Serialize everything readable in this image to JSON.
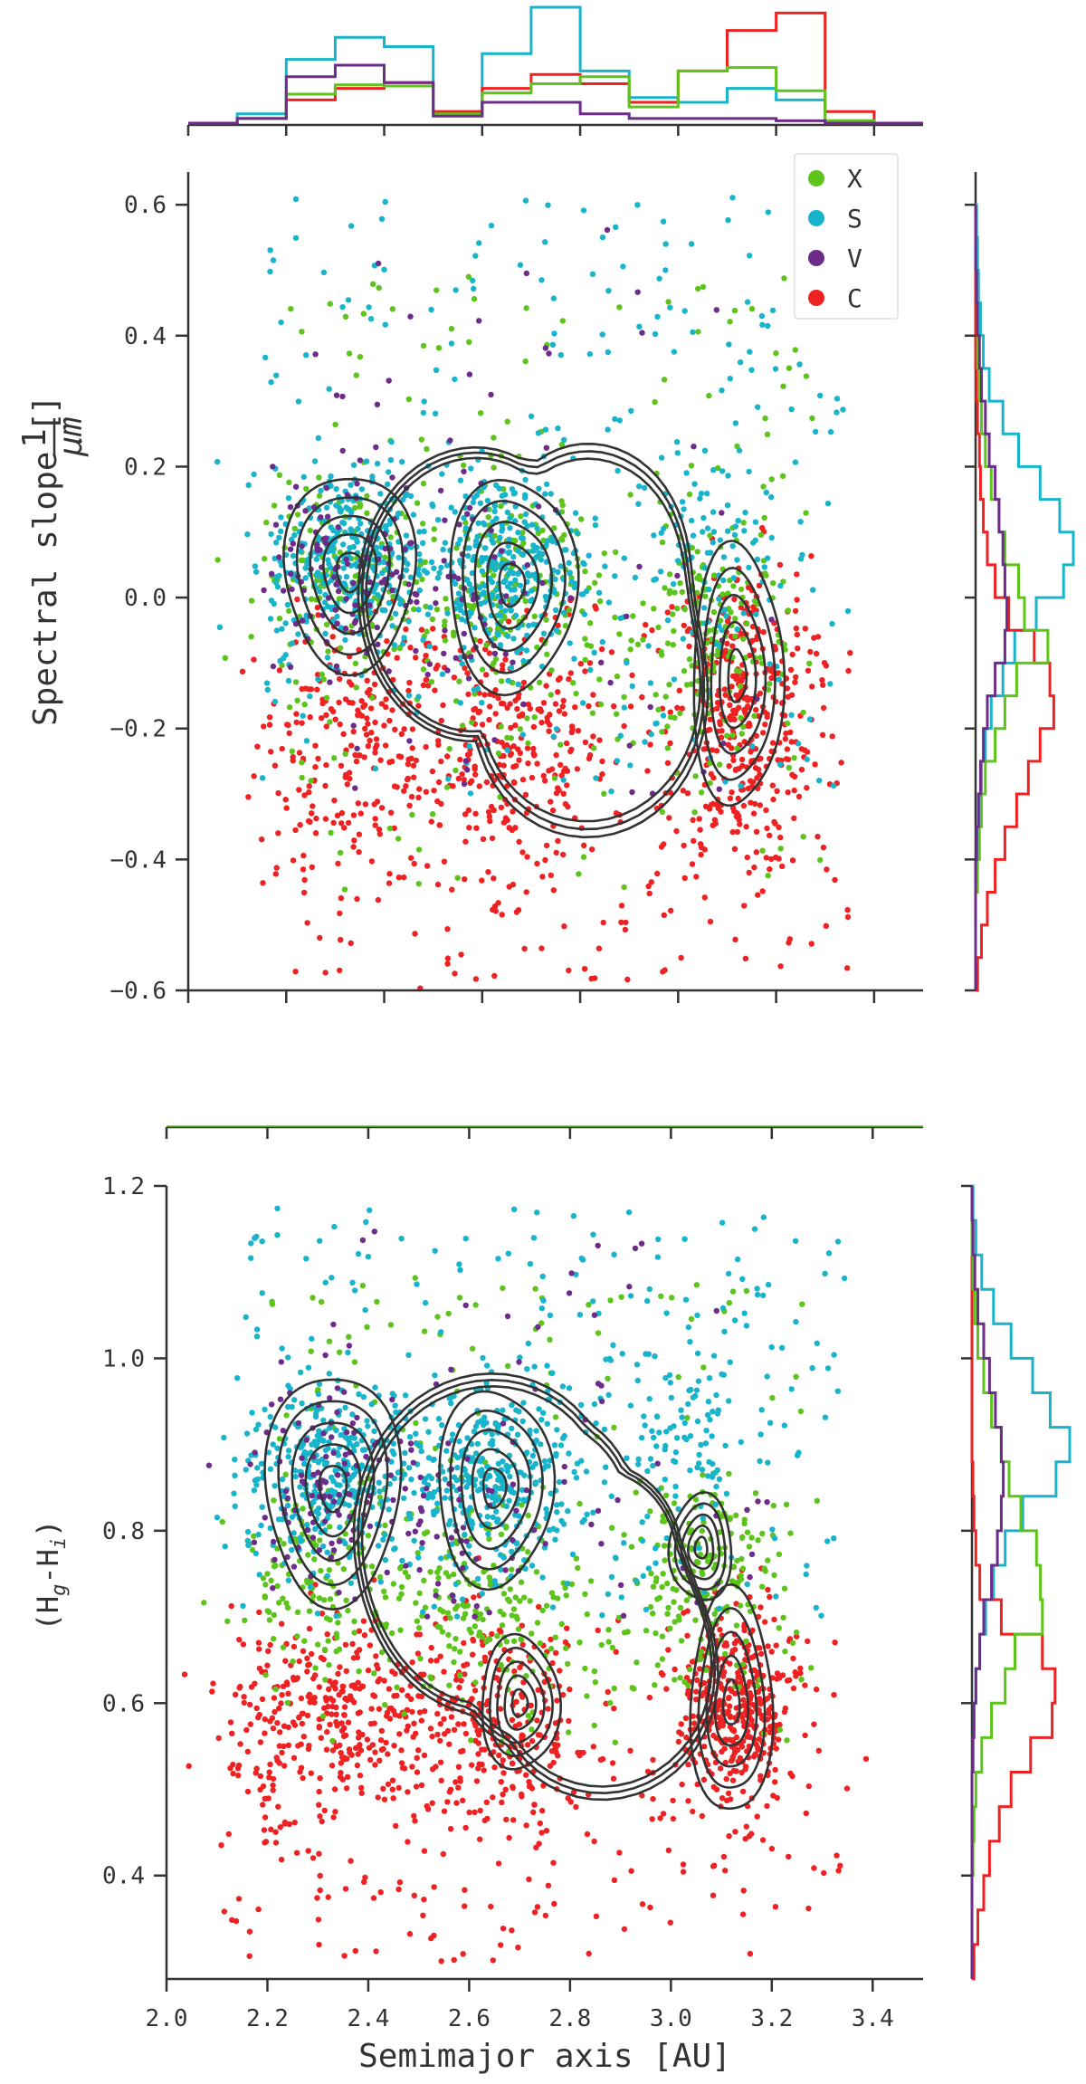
{
  "chart_data": [
    {
      "type": "scatter",
      "panel": "top",
      "title": "",
      "xlabel": "",
      "ylabel_text": "Spectral slope [",
      "ylabel_frac_num": "1",
      "ylabel_frac_den": "μm",
      "ylabel_close": "]",
      "xlim": [
        2.0,
        3.5
      ],
      "ylim": [
        -0.6,
        0.65
      ],
      "yticks": [
        -0.6,
        -0.4,
        -0.2,
        0.0,
        0.2,
        0.4,
        0.6
      ],
      "ytick_labels": [
        "−0.6",
        "−0.4",
        "−0.2",
        "0.0",
        "0.2",
        "0.4",
        "0.6"
      ],
      "xticks": [
        2.0,
        2.2,
        2.4,
        2.6,
        2.8,
        3.0,
        3.2,
        3.4
      ],
      "legend_position": "top-right",
      "series": [
        {
          "name": "X",
          "color": "#5cc41a",
          "clusters": [
            [
              2.33,
              0.03,
              0.09,
              0.07,
              160
            ],
            [
              2.66,
              0.0,
              0.09,
              0.09,
              200
            ],
            [
              3.06,
              -0.06,
              0.07,
              0.1,
              150
            ]
          ],
          "spread": [
            2.2,
            3.3,
            -0.45,
            0.5,
            160
          ]
        },
        {
          "name": "S",
          "color": "#18b4cc",
          "clusters": [
            [
              2.33,
              0.06,
              0.08,
              0.07,
              330
            ],
            [
              2.64,
              0.05,
              0.08,
              0.07,
              300
            ],
            [
              3.05,
              0.05,
              0.08,
              0.09,
              90
            ]
          ],
          "spread": [
            2.15,
            3.35,
            -0.3,
            0.62,
            240
          ]
        },
        {
          "name": "V",
          "color": "#6e2c8a",
          "clusters": [
            [
              2.33,
              0.05,
              0.08,
              0.08,
              110
            ],
            [
              2.6,
              0.02,
              0.07,
              0.08,
              40
            ]
          ],
          "spread": [
            2.15,
            3.2,
            -0.3,
            0.6,
            60
          ]
        },
        {
          "name": "C",
          "color": "#ee2222",
          "clusters": [
            [
              2.34,
              -0.22,
              0.1,
              0.1,
              200
            ],
            [
              2.66,
              -0.24,
              0.1,
              0.09,
              240
            ],
            [
              3.13,
              -0.18,
              0.07,
              0.12,
              360
            ]
          ],
          "spread": [
            2.15,
            3.35,
            -0.6,
            0.0,
            230
          ]
        }
      ],
      "contour_levels": 8,
      "kde_centers": [
        [
          2.33,
          0.04,
          0.08,
          0.09,
          1.0
        ],
        [
          2.66,
          0.02,
          0.08,
          0.1,
          0.95
        ],
        [
          3.12,
          -0.12,
          0.06,
          0.13,
          0.85
        ]
      ]
    },
    {
      "type": "scatter",
      "panel": "bottom",
      "title": "",
      "xlabel": "Semimajor axis [AU]",
      "ylabel_parts": [
        "(H",
        "g",
        "-H",
        "i",
        ")"
      ],
      "xlim": [
        2.0,
        3.5
      ],
      "ylim": [
        0.28,
        1.2
      ],
      "xticks": [
        2.0,
        2.2,
        2.4,
        2.6,
        2.8,
        3.0,
        3.2,
        3.4
      ],
      "xtick_labels": [
        "2.0",
        "2.2",
        "2.4",
        "2.6",
        "2.8",
        "3.0",
        "3.2",
        "3.4"
      ],
      "yticks": [
        0.4,
        0.6,
        0.8,
        1.0,
        1.2
      ],
      "ytick_labels": [
        "0.4",
        "0.6",
        "0.8",
        "1.0",
        "1.2"
      ],
      "series": [
        {
          "name": "X",
          "color": "#5cc41a",
          "clusters": [
            [
              2.33,
              0.75,
              0.1,
              0.05,
              140
            ],
            [
              2.66,
              0.72,
              0.09,
              0.06,
              170
            ],
            [
              3.06,
              0.75,
              0.07,
              0.06,
              180
            ]
          ],
          "spread": [
            2.2,
            3.3,
            0.55,
            1.1,
            160
          ]
        },
        {
          "name": "S",
          "color": "#18b4cc",
          "clusters": [
            [
              2.33,
              0.87,
              0.09,
              0.05,
              330
            ],
            [
              2.65,
              0.86,
              0.08,
              0.05,
              300
            ],
            [
              3.03,
              0.9,
              0.07,
              0.06,
              90
            ]
          ],
          "spread": [
            2.15,
            3.35,
            0.7,
            1.18,
            240
          ]
        },
        {
          "name": "V",
          "color": "#6e2c8a",
          "clusters": [
            [
              2.33,
              0.86,
              0.08,
              0.06,
              100
            ],
            [
              2.6,
              0.82,
              0.07,
              0.06,
              40
            ]
          ],
          "spread": [
            2.15,
            3.2,
            0.7,
            1.15,
            60
          ]
        },
        {
          "name": "C",
          "color": "#ee2222",
          "clusters": [
            [
              2.33,
              0.58,
              0.1,
              0.06,
              300
            ],
            [
              2.66,
              0.57,
              0.1,
              0.06,
              260
            ],
            [
              3.13,
              0.59,
              0.06,
              0.06,
              380
            ]
          ],
          "spread": [
            2.1,
            3.35,
            0.3,
            0.68,
            230
          ]
        }
      ],
      "contour_levels": 8,
      "kde_centers": [
        [
          2.33,
          0.85,
          0.08,
          0.08,
          1.0
        ],
        [
          2.65,
          0.85,
          0.07,
          0.07,
          0.95
        ],
        [
          2.7,
          0.6,
          0.06,
          0.06,
          0.6
        ],
        [
          3.12,
          0.6,
          0.05,
          0.08,
          0.95
        ],
        [
          3.06,
          0.78,
          0.05,
          0.05,
          0.55
        ]
      ]
    },
    {
      "type": "histogram",
      "panel": "top-marginal-x",
      "orientation": "vertical",
      "bin_edges": [
        2.0,
        2.1,
        2.2,
        2.3,
        2.4,
        2.5,
        2.6,
        2.7,
        2.8,
        2.9,
        3.0,
        3.1,
        3.2,
        3.3,
        3.4,
        3.5
      ],
      "series": [
        {
          "name": "S",
          "color": "#18b4cc",
          "values": [
            0,
            0.08,
            0.55,
            0.74,
            0.66,
            0.1,
            0.6,
            1.0,
            0.45,
            0.22,
            0.18,
            0.3,
            0.2,
            0.02,
            0.0
          ]
        },
        {
          "name": "C",
          "color": "#ee2222",
          "values": [
            0,
            0.04,
            0.2,
            0.3,
            0.35,
            0.1,
            0.3,
            0.42,
            0.34,
            0.18,
            0.45,
            0.8,
            0.95,
            0.1,
            0.0
          ]
        },
        {
          "name": "X",
          "color": "#5cc41a",
          "values": [
            0,
            0.04,
            0.25,
            0.33,
            0.32,
            0.08,
            0.26,
            0.34,
            0.4,
            0.14,
            0.45,
            0.48,
            0.28,
            0.02,
            0.0
          ]
        },
        {
          "name": "V",
          "color": "#6e2c8a",
          "values": [
            0,
            0.04,
            0.4,
            0.5,
            0.35,
            0.06,
            0.18,
            0.18,
            0.08,
            0.04,
            0.04,
            0.04,
            0.02,
            0.0,
            0.0
          ]
        }
      ]
    },
    {
      "type": "histogram",
      "panel": "top-marginal-y",
      "orientation": "horizontal",
      "bin_edges": [
        -0.6,
        -0.55,
        -0.5,
        -0.45,
        -0.4,
        -0.35,
        -0.3,
        -0.25,
        -0.2,
        -0.15,
        -0.1,
        -0.05,
        0.0,
        0.05,
        0.1,
        0.15,
        0.2,
        0.25,
        0.3,
        0.35,
        0.4,
        0.45,
        0.5,
        0.55,
        0.6
      ],
      "series": [
        {
          "name": "S",
          "color": "#18b4cc",
          "values": [
            0,
            0,
            0,
            0,
            0.02,
            0.04,
            0.06,
            0.1,
            0.16,
            0.28,
            0.4,
            0.62,
            0.9,
            1.0,
            0.86,
            0.66,
            0.44,
            0.28,
            0.14,
            0.08,
            0.05,
            0.03,
            0.02,
            0.01
          ]
        },
        {
          "name": "C",
          "color": "#ee2222",
          "values": [
            0.02,
            0.06,
            0.12,
            0.2,
            0.3,
            0.42,
            0.54,
            0.66,
            0.8,
            0.76,
            0.6,
            0.34,
            0.2,
            0.12,
            0.08,
            0.05,
            0.04,
            0.02,
            0.01,
            0.0,
            0.0,
            0.0,
            0.0,
            0.0
          ]
        },
        {
          "name": "X",
          "color": "#5cc41a",
          "values": [
            0,
            0,
            0,
            0.02,
            0.04,
            0.06,
            0.1,
            0.2,
            0.3,
            0.42,
            0.74,
            0.5,
            0.44,
            0.3,
            0.24,
            0.16,
            0.1,
            0.06,
            0.04,
            0.02,
            0.02,
            0.01,
            0.0,
            0.0
          ]
        },
        {
          "name": "V",
          "color": "#6e2c8a",
          "values": [
            0,
            0,
            0,
            0,
            0.01,
            0.03,
            0.05,
            0.08,
            0.12,
            0.2,
            0.3,
            0.32,
            0.3,
            0.28,
            0.24,
            0.2,
            0.14,
            0.1,
            0.06,
            0.04,
            0.02,
            0.01,
            0.0,
            0.0
          ]
        }
      ]
    },
    {
      "type": "histogram",
      "panel": "bottom-marginal-y",
      "orientation": "horizontal",
      "bin_edges": [
        0.28,
        0.32,
        0.36,
        0.4,
        0.44,
        0.48,
        0.52,
        0.56,
        0.6,
        0.64,
        0.68,
        0.72,
        0.76,
        0.8,
        0.84,
        0.88,
        0.92,
        0.96,
        1.0,
        1.04,
        1.08,
        1.12,
        1.16,
        1.2
      ],
      "series": [
        {
          "name": "S",
          "color": "#18b4cc",
          "values": [
            0,
            0,
            0,
            0,
            0,
            0,
            0.01,
            0.02,
            0.04,
            0.08,
            0.14,
            0.22,
            0.34,
            0.52,
            0.86,
            1.0,
            0.8,
            0.62,
            0.4,
            0.22,
            0.1,
            0.04,
            0.01
          ]
        },
        {
          "name": "C",
          "color": "#ee2222",
          "values": [
            0.02,
            0.06,
            0.12,
            0.18,
            0.28,
            0.4,
            0.6,
            0.82,
            0.85,
            0.72,
            0.3,
            0.08,
            0.04,
            0.02,
            0.01,
            0,
            0,
            0,
            0,
            0,
            0,
            0,
            0
          ]
        },
        {
          "name": "X",
          "color": "#5cc41a",
          "values": [
            0,
            0,
            0,
            0.01,
            0.02,
            0.04,
            0.1,
            0.2,
            0.34,
            0.44,
            0.72,
            0.7,
            0.66,
            0.5,
            0.38,
            0.3,
            0.2,
            0.12,
            0.06,
            0.03,
            0.01,
            0,
            0
          ]
        },
        {
          "name": "V",
          "color": "#6e2c8a",
          "values": [
            0,
            0,
            0,
            0,
            0,
            0,
            0.01,
            0.02,
            0.04,
            0.08,
            0.12,
            0.2,
            0.26,
            0.3,
            0.32,
            0.3,
            0.24,
            0.18,
            0.12,
            0.06,
            0.03,
            0.01,
            0
          ]
        }
      ]
    }
  ],
  "legend": [
    {
      "label": "X",
      "color": "#5cc41a"
    },
    {
      "label": "S",
      "color": "#18b4cc"
    },
    {
      "label": "V",
      "color": "#6e2c8a"
    },
    {
      "label": "C",
      "color": "#ee2222"
    }
  ]
}
